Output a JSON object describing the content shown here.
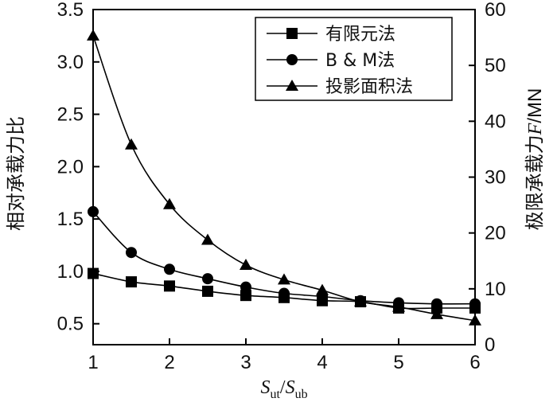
{
  "chart_data": {
    "type": "line",
    "xlabel_main": "S",
    "xlabel_sub1": "ut",
    "xlabel_sep": "/",
    "xlabel_sub2": "ub",
    "ylabel_left": "相对承载力比",
    "ylabel_right_prefix": "极限承载力",
    "ylabel_right_var": "F",
    "ylabel_right_unit": "/MN",
    "xlim": [
      1,
      6
    ],
    "ylim_left": [
      0.3,
      3.5
    ],
    "ylim_right": [
      0,
      60
    ],
    "x_ticks": [
      "1",
      "2",
      "3",
      "4",
      "5",
      "6"
    ],
    "y_left_ticks": [
      "0.5",
      "1.0",
      "1.5",
      "2.0",
      "2.5",
      "3.0",
      "3.5"
    ],
    "y_right_ticks": [
      "0",
      "10",
      "20",
      "30",
      "40",
      "50",
      "60"
    ],
    "legend_position": "top-right",
    "series": [
      {
        "name": "有限元法",
        "marker": "square",
        "x": [
          1,
          1.5,
          2,
          2.5,
          3,
          3.5,
          4,
          4.5,
          5,
          5.5,
          6
        ],
        "y": [
          0.98,
          0.9,
          0.86,
          0.81,
          0.77,
          0.75,
          0.72,
          0.71,
          0.65,
          0.65,
          0.65
        ]
      },
      {
        "name": "B & M法",
        "marker": "circle",
        "x": [
          1,
          1.5,
          2,
          2.5,
          3,
          3.5,
          4,
          4.5,
          5,
          5.5,
          6
        ],
        "y": [
          1.57,
          1.18,
          1.02,
          0.93,
          0.85,
          0.79,
          0.76,
          0.72,
          0.7,
          0.69,
          0.69
        ]
      },
      {
        "name": "投影面积法",
        "marker": "triangle",
        "x": [
          1,
          1.5,
          2,
          2.5,
          3,
          3.5,
          4,
          4.5,
          5,
          5.5,
          6
        ],
        "y": [
          3.25,
          2.21,
          1.64,
          1.3,
          1.06,
          0.92,
          0.82,
          0.71,
          0.66,
          0.59,
          0.53
        ]
      }
    ]
  }
}
